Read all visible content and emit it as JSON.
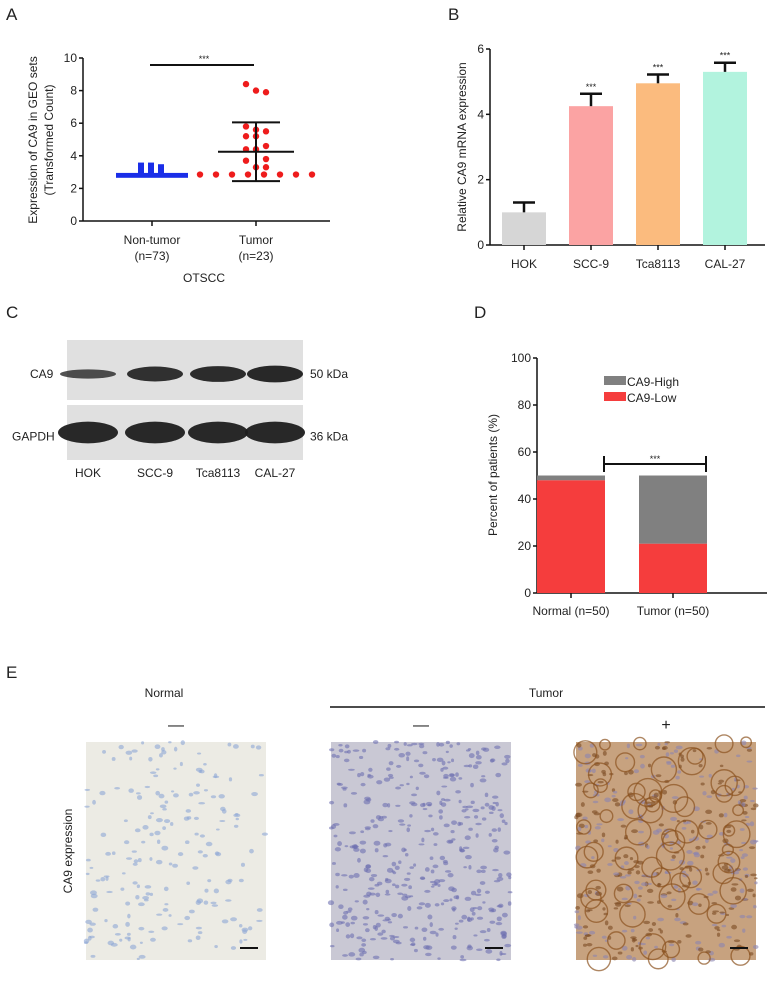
{
  "panels": {
    "A": "A",
    "B": "B",
    "C": "C",
    "D": "D",
    "E": "E"
  },
  "chart_data": [
    {
      "panel": "A",
      "type": "scatter",
      "ylabel": "Expression of CA9 in GEO sets",
      "ylabel2": "(Transformed Count)",
      "xlabel": "OTSCC",
      "ylim": [
        0,
        10
      ],
      "yticks": [
        0,
        2,
        4,
        6,
        8,
        10
      ],
      "categories": [
        {
          "label": "Non-tumor",
          "n": "(n=73)",
          "color": "#1a2ee8",
          "mean": 2.8,
          "values": [
            2.7,
            2.75,
            2.8,
            2.8,
            2.85,
            2.9,
            2.95,
            3.0,
            3.2,
            3.4,
            3.4,
            3.3,
            2.6,
            2.65
          ]
        },
        {
          "label": "Tumor",
          "n": "(n=23)",
          "color": "#ee1c1c",
          "mean": 4.25,
          "sd_low": 2.45,
          "sd_high": 6.05,
          "values": [
            8.4,
            8.0,
            7.9,
            5.8,
            5.6,
            5.5,
            5.2,
            5.2,
            4.6,
            4.4,
            4.4,
            3.8,
            3.7,
            3.3,
            3.3,
            2.85,
            2.85,
            2.85,
            2.85,
            2.85,
            2.85,
            2.85,
            2.85
          ]
        }
      ],
      "significance": "***"
    },
    {
      "panel": "B",
      "type": "bar",
      "ylabel": "Relative CA9 mRNA expression",
      "ylim": [
        0,
        6
      ],
      "yticks": [
        0,
        2,
        4,
        6
      ],
      "categories": [
        "HOK",
        "SCC-9",
        "Tca8113",
        "CAL-27"
      ],
      "values": [
        1.0,
        4.25,
        4.95,
        5.3
      ],
      "errors": [
        0.3,
        0.38,
        0.27,
        0.28
      ],
      "colors": [
        "#d6d6d6",
        "#fba3a3",
        "#fbbb7e",
        "#b2f3de"
      ],
      "significance": [
        "",
        "***",
        "***",
        "***"
      ]
    },
    {
      "panel": "D",
      "type": "bar",
      "stacked": true,
      "ylabel": "Percent of patients (%)",
      "ylim": [
        0,
        100
      ],
      "yticks": [
        0,
        20,
        40,
        60,
        80,
        100
      ],
      "categories": [
        "Normal (n=50)",
        "Tumor (n=50)"
      ],
      "series": [
        {
          "name": "CA9-Low",
          "color": "#f53d3d",
          "values": [
            48,
            21
          ]
        },
        {
          "name": "CA9-High",
          "color": "#808080",
          "values": [
            2,
            29
          ]
        }
      ],
      "legend": "top-center",
      "significance": "***"
    }
  ],
  "blot": {
    "rows": [
      {
        "label": "CA9",
        "size": "50 kDa"
      },
      {
        "label": "GAPDH",
        "size": "36 kDa"
      }
    ],
    "lanes": [
      "HOK",
      "SCC-9",
      "Tca8113",
      "CAL-27"
    ]
  },
  "ihc": {
    "row_label": "CA9 expression",
    "group_normal": "Normal",
    "group_tumor": "Tumor",
    "images": [
      {
        "sign": "—",
        "stain": "negative"
      },
      {
        "sign": "—",
        "stain": "negative"
      },
      {
        "sign": "+",
        "stain": "positive"
      }
    ]
  }
}
